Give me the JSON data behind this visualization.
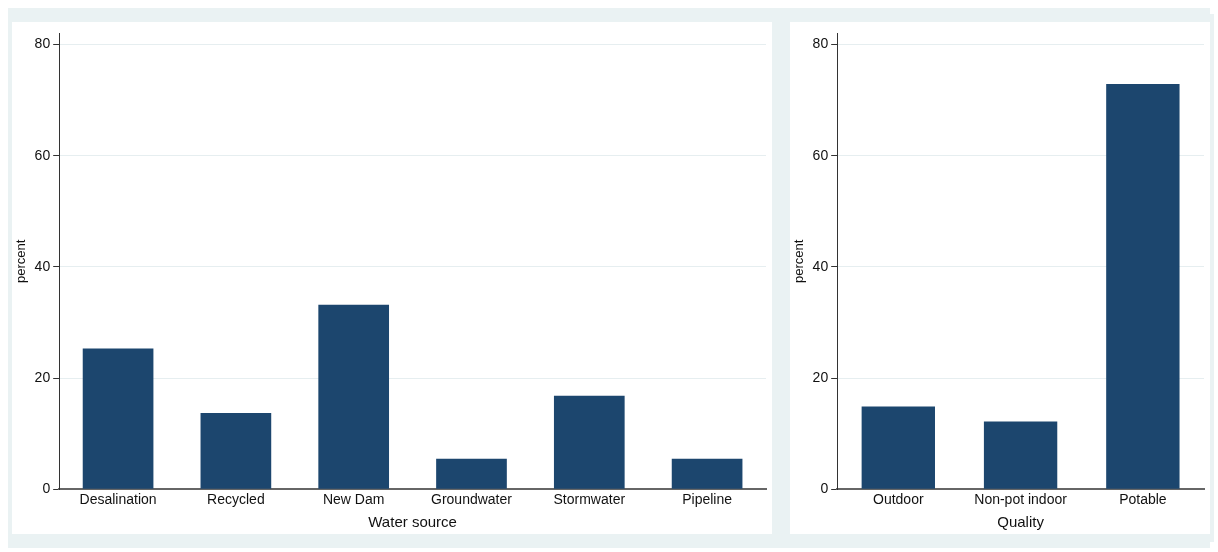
{
  "chart_data": [
    {
      "type": "bar",
      "categories": [
        "Desalination",
        "Recycled",
        "New Dam",
        "Groundwater",
        "Stormwater",
        "Pipeline"
      ],
      "values": [
        25.3,
        13.7,
        33.2,
        5.5,
        16.8,
        5.5
      ],
      "color": "#1c466e",
      "ylim": [
        0,
        82
      ],
      "yticks": [
        0,
        20,
        40,
        60,
        80
      ],
      "ylabel": "percent",
      "xlabel": "Water source",
      "grid": "y"
    },
    {
      "type": "bar",
      "categories": [
        "Outdoor",
        "Non-pot indoor",
        "Potable"
      ],
      "values": [
        14.9,
        12.2,
        72.9
      ],
      "color": "#1c466e",
      "ylim": [
        0,
        82
      ],
      "yticks": [
        0,
        20,
        40,
        60,
        80
      ],
      "ylabel": "percent",
      "xlabel": "Quality",
      "grid": "y"
    }
  ]
}
